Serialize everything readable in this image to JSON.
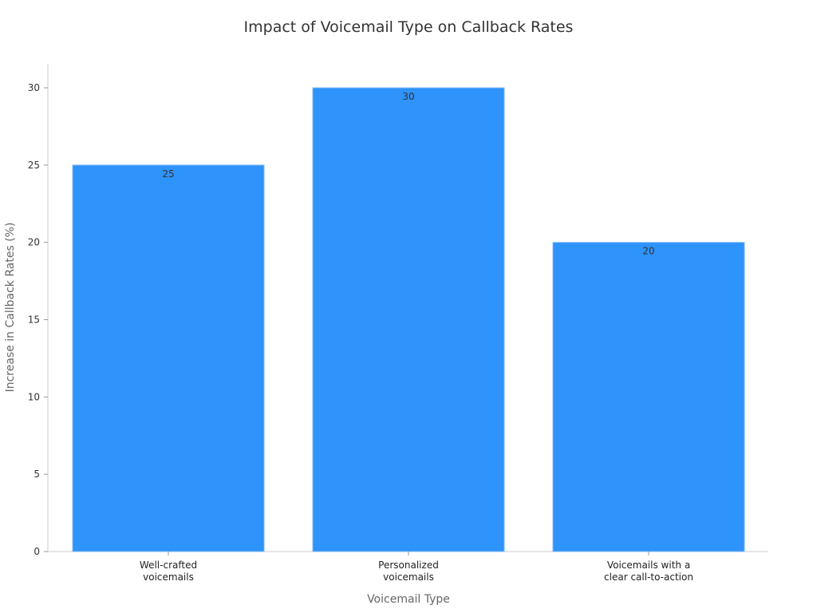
{
  "chart_data": {
    "type": "bar",
    "title": "Impact of Voicemail Type on Callback Rates",
    "xlabel": "Voicemail Type",
    "ylabel": "Increase in Callback Rates (%)",
    "categories": [
      [
        "Well-crafted",
        "voicemails"
      ],
      [
        "Personalized",
        "voicemails"
      ],
      [
        "Voicemails with a",
        "clear call-to-action"
      ]
    ],
    "values": [
      25,
      30,
      20
    ],
    "data_labels": [
      "25",
      "30",
      "20"
    ],
    "yticks": [
      0,
      5,
      10,
      15,
      20,
      25,
      30
    ],
    "ylim": [
      0,
      31.5
    ],
    "grid": false,
    "bar_color": "#2E93FA"
  }
}
